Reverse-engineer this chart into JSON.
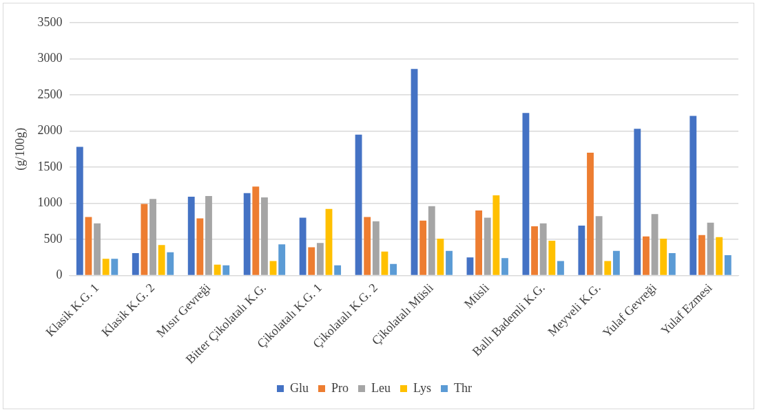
{
  "chart_data": {
    "type": "bar",
    "ylabel": "(g/100g)",
    "categories": [
      "Klasik K.G. 1",
      "Klasik K.G. 2",
      "Mısır Gevreği",
      "Bitter Çikolatalı K.G.",
      "Çikolatalı K.G. 1",
      "Çikolatalı K.G. 2",
      "Çikolatalı Müsli",
      "Müsli",
      "Ballı Bademli K.G.",
      "Meyveli K.G.",
      "Yulaf Gevreği",
      "Yulaf Ezmesi"
    ],
    "series": [
      {
        "name": "Glu",
        "color": "#4472c4",
        "values": [
          1780,
          310,
          1090,
          1140,
          800,
          1950,
          2860,
          250,
          2250,
          690,
          2030,
          2210
        ]
      },
      {
        "name": "Pro",
        "color": "#ed7d31",
        "values": [
          810,
          990,
          790,
          1230,
          390,
          810,
          760,
          900,
          680,
          1700,
          540,
          560
        ]
      },
      {
        "name": "Leu",
        "color": "#a5a5a5",
        "values": [
          720,
          1060,
          1100,
          1080,
          450,
          750,
          960,
          800,
          720,
          820,
          850,
          730
        ]
      },
      {
        "name": "Lys",
        "color": "#ffc000",
        "values": [
          230,
          420,
          150,
          200,
          920,
          330,
          510,
          1110,
          480,
          200,
          510,
          530
        ]
      },
      {
        "name": "Thr",
        "color": "#5b9bd5",
        "values": [
          230,
          320,
          140,
          430,
          140,
          160,
          340,
          240,
          200,
          340,
          310,
          280
        ]
      }
    ],
    "ylim": [
      0,
      3500
    ],
    "yticks": [
      0,
      500,
      1000,
      1500,
      2000,
      2500,
      3000,
      3500
    ],
    "grid": "y",
    "legend": "bottom"
  }
}
